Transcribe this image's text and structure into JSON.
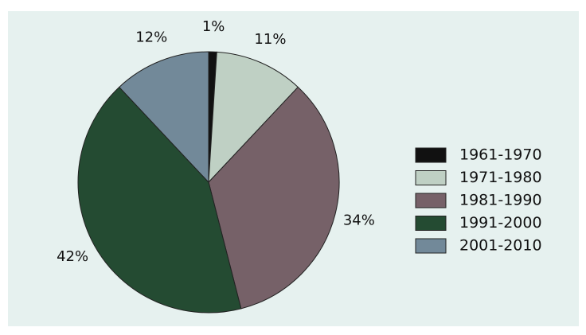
{
  "chart_data": {
    "type": "pie",
    "categories": [
      "1961-1970",
      "1971-1980",
      "1981-1990",
      "1991-2000",
      "2001-2010"
    ],
    "values": [
      1,
      11,
      34,
      42,
      12
    ],
    "value_labels": [
      "1%",
      "11%",
      "34%",
      "42%",
      "12%"
    ],
    "colors": [
      "#111111",
      "#bfd0c4",
      "#766168",
      "#244b32",
      "#728999"
    ],
    "legend": "right"
  }
}
